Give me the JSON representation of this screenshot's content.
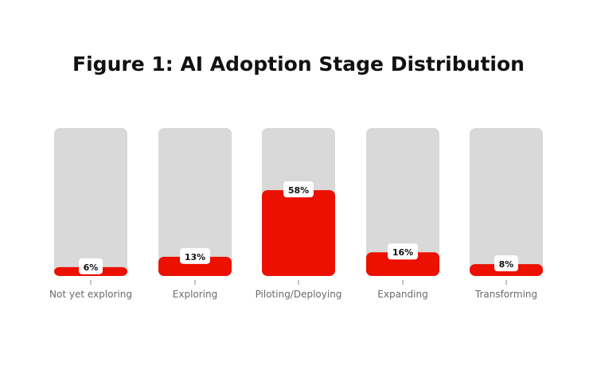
{
  "chart_data": {
    "type": "bar",
    "title": "Figure 1: AI Adoption Stage Distribution",
    "categories": [
      "Not yet exploring",
      "Exploring",
      "Piloting/Deploying",
      "Expanding",
      "Transforming"
    ],
    "values": [
      6,
      13,
      58,
      16,
      8
    ],
    "value_suffix": "%",
    "ylim": [
      0,
      100
    ],
    "grid": false,
    "xlabel": "",
    "ylabel": "",
    "colors": {
      "bar": "#eb1000",
      "track": "#d9d9d9",
      "label_bg": "#ffffff",
      "tick": "#8a8a8a"
    }
  }
}
